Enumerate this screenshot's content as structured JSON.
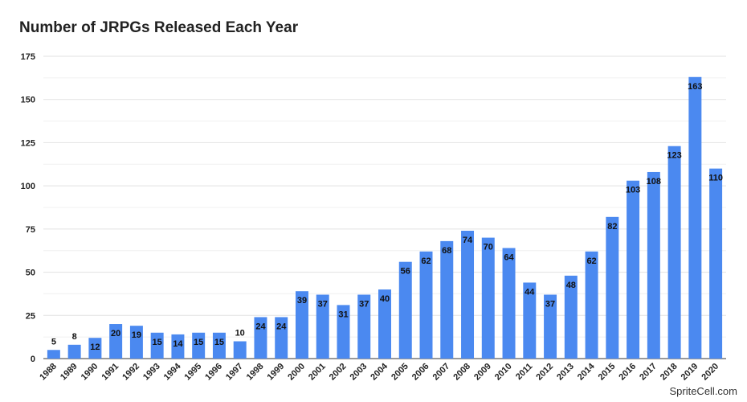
{
  "chart_data": {
    "type": "bar",
    "title": "Number of JRPGs Released Each Year",
    "xlabel": "",
    "ylabel": "",
    "ylim": [
      0,
      175
    ],
    "yticks": [
      0,
      25,
      50,
      75,
      100,
      125,
      150,
      175
    ],
    "grid": true,
    "categories": [
      "1988",
      "1989",
      "1990",
      "1991",
      "1992",
      "1993",
      "1994",
      "1995",
      "1996",
      "1997",
      "1998",
      "1999",
      "2000",
      "2001",
      "2002",
      "2003",
      "2004",
      "2005",
      "2006",
      "2007",
      "2008",
      "2009",
      "2010",
      "2011",
      "2012",
      "2013",
      "2014",
      "2015",
      "2016",
      "2017",
      "2018",
      "2019",
      "2020"
    ],
    "values": [
      5,
      8,
      12,
      20,
      19,
      15,
      14,
      15,
      15,
      10,
      24,
      24,
      39,
      37,
      31,
      37,
      40,
      56,
      62,
      68,
      74,
      70,
      64,
      44,
      37,
      48,
      62,
      82,
      103,
      108,
      123,
      163,
      110
    ],
    "bar_color": "#4b89f0"
  },
  "credit": "SpriteCell.com"
}
